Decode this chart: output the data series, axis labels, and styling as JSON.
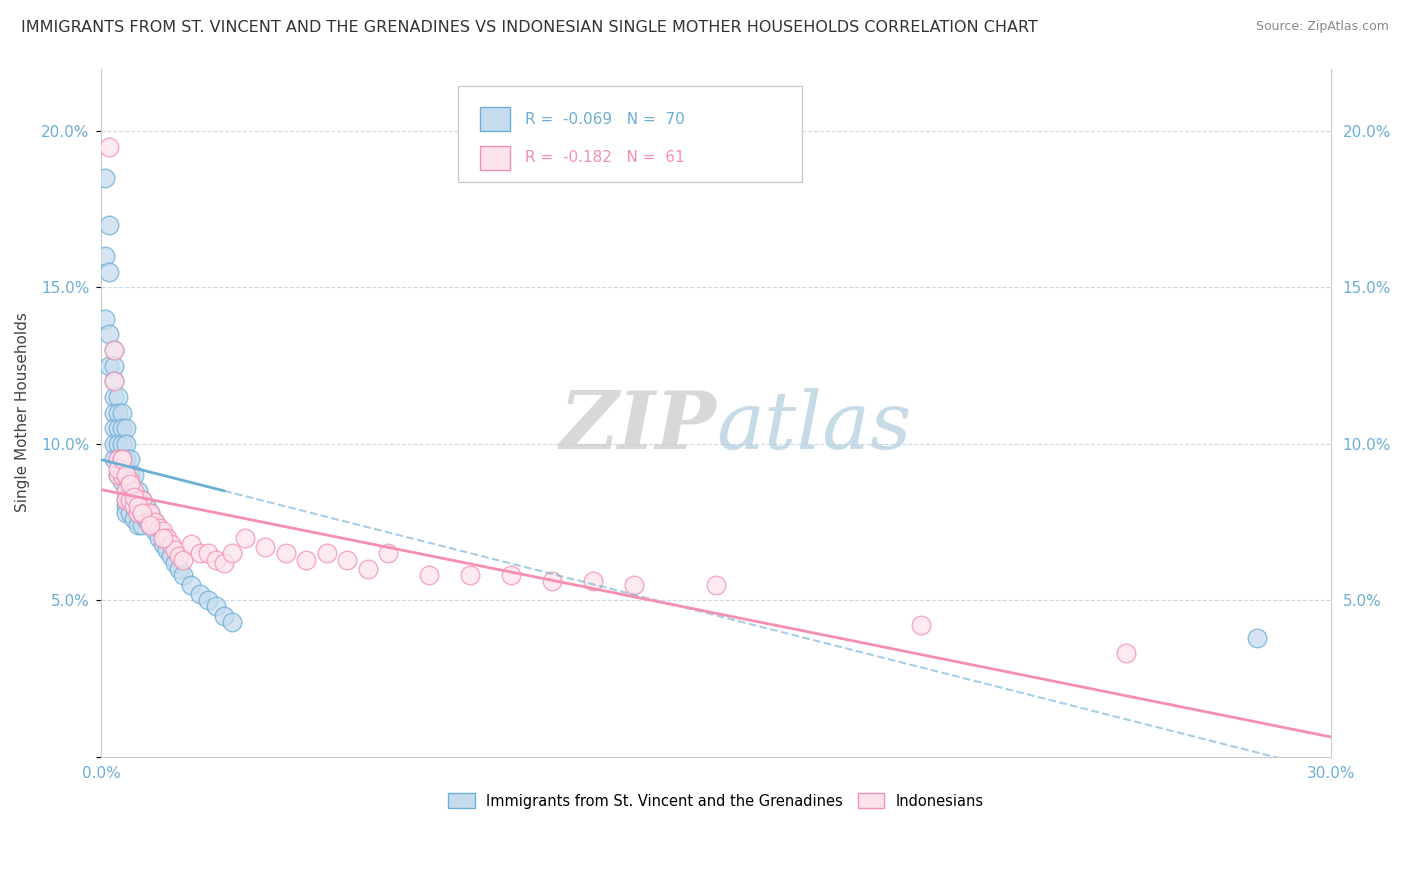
{
  "title": "IMMIGRANTS FROM ST. VINCENT AND THE GRENADINES VS INDONESIAN SINGLE MOTHER HOUSEHOLDS CORRELATION CHART",
  "source": "Source: ZipAtlas.com",
  "ylabel": "Single Mother Households",
  "legend_entries": [
    {
      "label": "Immigrants from St. Vincent and the Grenadines"
    },
    {
      "label": "Indonesians"
    }
  ],
  "blue_R": -0.069,
  "blue_N": 70,
  "pink_R": -0.182,
  "pink_N": 61,
  "blue_color": "#6baed6",
  "pink_color": "#f48fb1",
  "blue_fill": "#c6dcee",
  "pink_fill": "#fce4ec",
  "watermark_zip": "ZIP",
  "watermark_atlas": "atlas",
  "background_color": "#ffffff",
  "grid_color": "#d0d8e8",
  "xlim": [
    0.0,
    0.3
  ],
  "ylim": [
    0.0,
    0.22
  ],
  "blue_scatter_x": [
    0.001,
    0.001,
    0.001,
    0.002,
    0.002,
    0.002,
    0.002,
    0.003,
    0.003,
    0.003,
    0.003,
    0.003,
    0.003,
    0.003,
    0.003,
    0.004,
    0.004,
    0.004,
    0.004,
    0.004,
    0.004,
    0.005,
    0.005,
    0.005,
    0.005,
    0.005,
    0.006,
    0.006,
    0.006,
    0.006,
    0.006,
    0.006,
    0.006,
    0.006,
    0.007,
    0.007,
    0.007,
    0.007,
    0.007,
    0.008,
    0.008,
    0.008,
    0.008,
    0.009,
    0.009,
    0.009,
    0.009,
    0.01,
    0.01,
    0.01,
    0.011,
    0.011,
    0.012,
    0.012,
    0.013,
    0.013,
    0.014,
    0.015,
    0.016,
    0.017,
    0.018,
    0.019,
    0.02,
    0.022,
    0.024,
    0.026,
    0.028,
    0.03,
    0.032,
    0.282
  ],
  "blue_scatter_y": [
    0.185,
    0.16,
    0.14,
    0.17,
    0.155,
    0.135,
    0.125,
    0.13,
    0.125,
    0.12,
    0.115,
    0.11,
    0.105,
    0.1,
    0.095,
    0.115,
    0.11,
    0.105,
    0.1,
    0.095,
    0.09,
    0.11,
    0.105,
    0.1,
    0.095,
    0.088,
    0.105,
    0.1,
    0.095,
    0.09,
    0.085,
    0.082,
    0.08,
    0.078,
    0.095,
    0.09,
    0.085,
    0.082,
    0.078,
    0.09,
    0.085,
    0.08,
    0.076,
    0.085,
    0.082,
    0.078,
    0.074,
    0.082,
    0.078,
    0.074,
    0.08,
    0.076,
    0.078,
    0.074,
    0.075,
    0.072,
    0.07,
    0.068,
    0.066,
    0.064,
    0.062,
    0.06,
    0.058,
    0.055,
    0.052,
    0.05,
    0.048,
    0.045,
    0.043,
    0.038
  ],
  "pink_scatter_x": [
    0.002,
    0.003,
    0.003,
    0.004,
    0.004,
    0.005,
    0.005,
    0.006,
    0.006,
    0.006,
    0.007,
    0.007,
    0.008,
    0.008,
    0.009,
    0.009,
    0.01,
    0.01,
    0.011,
    0.012,
    0.012,
    0.013,
    0.014,
    0.015,
    0.016,
    0.017,
    0.018,
    0.019,
    0.02,
    0.022,
    0.024,
    0.026,
    0.028,
    0.03,
    0.032,
    0.035,
    0.04,
    0.045,
    0.05,
    0.055,
    0.06,
    0.065,
    0.07,
    0.08,
    0.09,
    0.1,
    0.11,
    0.12,
    0.13,
    0.15,
    0.2,
    0.25,
    0.004,
    0.005,
    0.006,
    0.007,
    0.008,
    0.009,
    0.01,
    0.012,
    0.015
  ],
  "pink_scatter_y": [
    0.195,
    0.13,
    0.12,
    0.095,
    0.09,
    0.095,
    0.09,
    0.09,
    0.085,
    0.082,
    0.088,
    0.082,
    0.085,
    0.08,
    0.082,
    0.078,
    0.082,
    0.078,
    0.078,
    0.078,
    0.075,
    0.075,
    0.073,
    0.072,
    0.07,
    0.068,
    0.066,
    0.064,
    0.063,
    0.068,
    0.065,
    0.065,
    0.063,
    0.062,
    0.065,
    0.07,
    0.067,
    0.065,
    0.063,
    0.065,
    0.063,
    0.06,
    0.065,
    0.058,
    0.058,
    0.058,
    0.056,
    0.056,
    0.055,
    0.055,
    0.042,
    0.033,
    0.092,
    0.095,
    0.09,
    0.087,
    0.083,
    0.08,
    0.078,
    0.074,
    0.07
  ]
}
